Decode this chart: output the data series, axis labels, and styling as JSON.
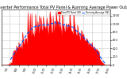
{
  "title": "Solar PV/Inverter Performance Total PV Panel & Running Average Power Output",
  "title_fontsize": 3.5,
  "bg_color": "#ffffff",
  "grid_color": "#cccccc",
  "bar_color": "#ff0000",
  "avg_line_color": "#0055ff",
  "ylim": [
    0,
    1350
  ],
  "n_points": 144,
  "yticks": [
    0,
    200,
    400,
    600,
    800,
    1000,
    1200
  ],
  "legend_pv": "Total PV Panel (W)",
  "legend_avg": "Running Average (W)"
}
